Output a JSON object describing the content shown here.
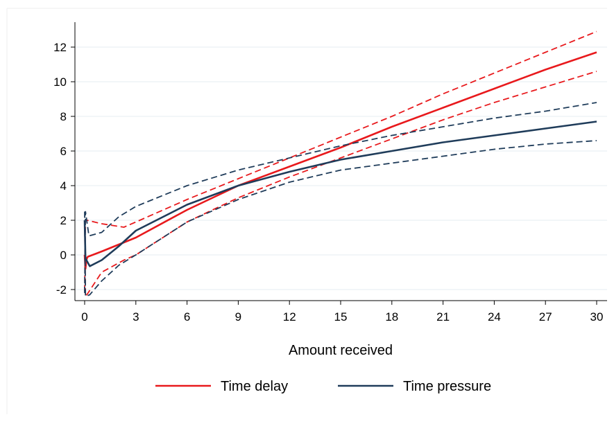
{
  "chart_data": {
    "type": "line",
    "xlabel": "Amount received",
    "ylabel": "",
    "xlim": [
      0,
      30
    ],
    "ylim": [
      -2.6,
      13.5
    ],
    "x_ticks": [
      0,
      3,
      6,
      9,
      12,
      15,
      18,
      21,
      24,
      27,
      30
    ],
    "y_ticks": [
      -2,
      0,
      2,
      4,
      6,
      8,
      10,
      12
    ],
    "grid": "horizontal",
    "legend_position": "bottom",
    "legend": [
      "Time delay",
      "Time pressure"
    ],
    "series": [
      {
        "name": "Time delay",
        "color": "#e8191c",
        "style": "solid",
        "x": [
          0,
          0.05,
          0.1,
          0.15,
          0.2,
          1,
          2,
          3,
          6,
          9,
          12,
          15,
          18,
          21,
          24,
          27,
          30
        ],
        "y": [
          0,
          -0.8,
          -0.3,
          -0.15,
          -0.1,
          0.2,
          0.6,
          1.0,
          2.6,
          4.0,
          5.1,
          6.2,
          7.4,
          8.5,
          9.6,
          10.7,
          11.7
        ]
      },
      {
        "name": "Time delay upper CI",
        "color": "#e8191c",
        "style": "dashed",
        "x": [
          0,
          0.05,
          0.15,
          1,
          2.3,
          3,
          6,
          9,
          12,
          15,
          18,
          21,
          24,
          27,
          30
        ],
        "y": [
          -2.1,
          2.0,
          2.0,
          1.8,
          1.6,
          1.9,
          3.2,
          4.4,
          5.6,
          6.8,
          8.0,
          9.3,
          10.5,
          11.7,
          12.9
        ]
      },
      {
        "name": "Time delay lower CI",
        "color": "#e8191c",
        "style": "dashed",
        "x": [
          0,
          0.05,
          0.2,
          1,
          2.3,
          3,
          6,
          9,
          12,
          15,
          18,
          21,
          24,
          27,
          30
        ],
        "y": [
          2.0,
          -2.4,
          -2.2,
          -1.0,
          -0.3,
          0.0,
          1.9,
          3.3,
          4.5,
          5.6,
          6.7,
          7.8,
          8.8,
          9.7,
          10.6
        ]
      },
      {
        "name": "Time pressure",
        "color": "#1f3c5a",
        "style": "solid",
        "x": [
          0,
          0.05,
          0.3,
          1,
          2,
          3,
          6,
          9,
          12,
          15,
          18,
          21,
          24,
          27,
          30
        ],
        "y": [
          2.0,
          -0.2,
          -0.65,
          -0.3,
          0.5,
          1.4,
          2.9,
          4.0,
          4.8,
          5.5,
          6.0,
          6.5,
          6.9,
          7.3,
          7.7
        ]
      },
      {
        "name": "Time pressure upper CI",
        "color": "#1f3c5a",
        "style": "dashed",
        "x": [
          0,
          0.05,
          0.25,
          1,
          2,
          3,
          6,
          9,
          12,
          15,
          18,
          21,
          24,
          27,
          30
        ],
        "y": [
          -2.2,
          2.5,
          1.1,
          1.3,
          2.2,
          2.8,
          4.0,
          4.9,
          5.6,
          6.3,
          6.9,
          7.4,
          7.9,
          8.3,
          8.8
        ]
      },
      {
        "name": "Time pressure lower CI",
        "color": "#1f3c5a",
        "style": "dashed",
        "x": [
          0,
          0.05,
          0.3,
          1,
          2,
          3,
          6,
          9,
          12,
          15,
          18,
          21,
          24,
          27,
          30
        ],
        "y": [
          2.5,
          -2.4,
          -2.3,
          -1.5,
          -0.6,
          0.0,
          1.9,
          3.2,
          4.2,
          4.9,
          5.3,
          5.7,
          6.1,
          6.4,
          6.6
        ]
      }
    ]
  }
}
